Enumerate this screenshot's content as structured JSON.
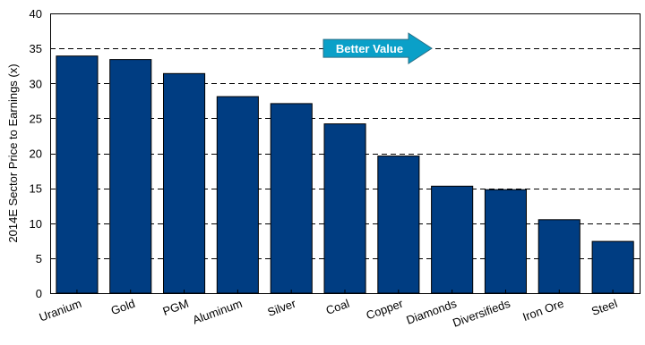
{
  "chart_data": {
    "type": "bar",
    "title": "",
    "xlabel": "",
    "ylabel": "2014E Sector Price to Earnings (x)",
    "categories": [
      "Uranium",
      "Gold",
      "PGM",
      "Aluminum",
      "Silver",
      "Coal",
      "Copper",
      "Diamonds",
      "Diversifieds",
      "Iron Ore",
      "Steel"
    ],
    "values": [
      33.9,
      33.4,
      31.4,
      28.1,
      27.1,
      24.2,
      19.6,
      15.3,
      14.8,
      10.5,
      7.4
    ],
    "ylim": [
      0,
      40
    ],
    "yticks": [
      0,
      5,
      10,
      15,
      20,
      25,
      30,
      35,
      40
    ],
    "grid": "horizontal-dashed",
    "legend": "none",
    "annotation": {
      "text": "Better Value",
      "direction": "right"
    },
    "colors": {
      "bar": "#003d82",
      "bar_stroke": "#000000",
      "arrow_fill": "#0aa0c8",
      "arrow_stroke": "#2a6f86",
      "grid": "#000000"
    }
  }
}
